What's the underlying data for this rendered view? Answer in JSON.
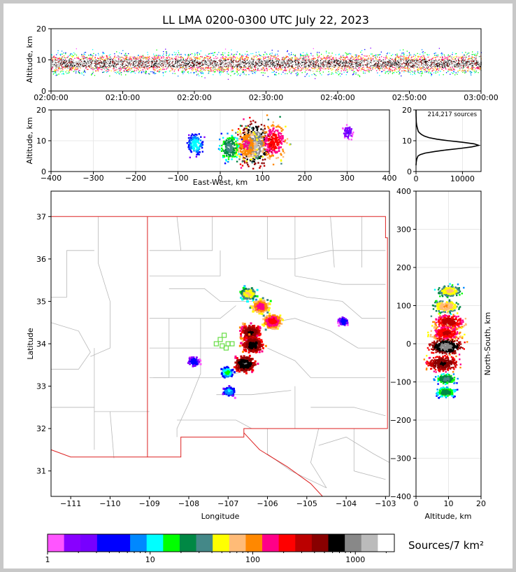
{
  "title": "LL LMA 0200-0300 UTC July 22, 2023",
  "time_height": {
    "ylabel": "Altitude, km",
    "yticks": [
      "0",
      "10",
      "20"
    ],
    "xticks": [
      "02:00:00",
      "02:10:00",
      "02:20:00",
      "02:30:00",
      "02:40:00",
      "02:50:00",
      "03:00:00"
    ]
  },
  "ew_alt": {
    "ylabel": "Altitude, km",
    "xlabel": "East-West, km",
    "yticks": [
      "0",
      "10",
      "20"
    ],
    "xticks": [
      "−400",
      "−300",
      "−200",
      "−100",
      "0",
      "100",
      "200",
      "300",
      "400"
    ]
  },
  "histogram": {
    "annotation": "214,217 sources",
    "yticks": [
      "0",
      "10",
      "20"
    ],
    "xticks": [
      "0",
      "10000"
    ]
  },
  "plan_view": {
    "xlabel": "Longitude",
    "ylabel": "Latitude",
    "xticks": [
      "−111",
      "−110",
      "−109",
      "−108",
      "−107",
      "−106",
      "−105",
      "−104",
      "−103"
    ],
    "yticks": [
      "31",
      "32",
      "33",
      "34",
      "35",
      "36",
      "37"
    ]
  },
  "ns_alt": {
    "xlabel": "Altitude, km",
    "ylabel": "North-South, km",
    "xticks": [
      "0",
      "10",
      "20"
    ],
    "yticks": [
      "−400",
      "−300",
      "−200",
      "−100",
      "0",
      "100",
      "200",
      "300",
      "400"
    ]
  },
  "colorbar": {
    "label": "Sources/7 km²",
    "ticks": [
      "1",
      "10",
      "100",
      "1000"
    ],
    "colors": [
      "#ff55ff",
      "#8800ff",
      "#7700ff",
      "#0000ff",
      "#0000ff",
      "#0088ff",
      "#00ffff",
      "#00ff00",
      "#008844",
      "#448888",
      "#ffff00",
      "#ffbb77",
      "#ff8800",
      "#ff0088",
      "#ff0000",
      "#bb0000",
      "#880000",
      "#000000",
      "#888888",
      "#bbbbbb",
      "#ffffff"
    ]
  },
  "chart_data": [
    {
      "type": "scatter",
      "panel": "time-height",
      "title": "LL LMA 0200-0300 UTC July 22, 2023",
      "xlabel": "",
      "ylabel": "Altitude, km",
      "xlim": [
        "02:00:00",
        "03:00:00"
      ],
      "ylim": [
        0,
        20
      ],
      "mean_altitude_km": 9
    },
    {
      "type": "heatmap",
      "panel": "east-west-altitude",
      "xlabel": "East-West, km",
      "ylabel": "Altitude, km",
      "xlim": [
        -400,
        400
      ],
      "ylim": [
        0,
        20
      ],
      "cells": [
        {
          "x": 80,
          "y": 9,
          "count": 1000
        },
        {
          "x": 125,
          "y": 10,
          "count": 200
        },
        {
          "x": 60,
          "y": 9,
          "count": 120
        },
        {
          "x": 20,
          "y": 8,
          "count": 30
        },
        {
          "x": -60,
          "y": 9,
          "count": 12
        },
        {
          "x": 300,
          "y": 13,
          "count": 3
        }
      ]
    },
    {
      "type": "line",
      "panel": "altitude-histogram",
      "xlabel": "",
      "ylabel": "",
      "xlim": [
        0,
        14000
      ],
      "ylim": [
        0,
        20
      ],
      "total_sources": 214217,
      "x": [
        0,
        50,
        150,
        400,
        900,
        2000,
        4000,
        6500,
        9500,
        12000,
        13500,
        12500,
        10000,
        7000,
        4500,
        2800,
        1800,
        1200,
        800,
        500,
        300,
        150,
        60,
        20,
        0
      ],
      "y": [
        2,
        3,
        4,
        5,
        5.5,
        6,
        6.5,
        7,
        7.5,
        8,
        8.5,
        9,
        9.5,
        10,
        10.5,
        11,
        11.5,
        12,
        12.5,
        13,
        14,
        15,
        16,
        18,
        20
      ]
    },
    {
      "type": "heatmap",
      "panel": "plan-view",
      "xlabel": "Longitude",
      "ylabel": "Latitude",
      "xlim": [
        -111.5,
        -102.9
      ],
      "ylim": [
        30.4,
        37.6
      ],
      "cells": [
        {
          "x": -106.5,
          "y": 35.2,
          "count": 60
        },
        {
          "x": -106.2,
          "y": 34.9,
          "count": 150
        },
        {
          "x": -105.9,
          "y": 34.55,
          "count": 200
        },
        {
          "x": -106.45,
          "y": 34.3,
          "count": 500
        },
        {
          "x": -106.4,
          "y": 34.0,
          "count": 600
        },
        {
          "x": -106.6,
          "y": 33.55,
          "count": 700
        },
        {
          "x": -107.05,
          "y": 33.35,
          "count": 15
        },
        {
          "x": -107.0,
          "y": 32.9,
          "count": 10
        },
        {
          "x": -107.9,
          "y": 33.6,
          "count": 6
        },
        {
          "x": -104.1,
          "y": 34.55,
          "count": 5
        }
      ]
    },
    {
      "type": "heatmap",
      "panel": "north-south-altitude",
      "xlabel": "Altitude, km",
      "ylabel": "North-South, km",
      "xlim": [
        0,
        20
      ],
      "ylim": [
        -400,
        400
      ],
      "cells": [
        {
          "x": 10,
          "y": 140,
          "count": 60
        },
        {
          "x": 9,
          "y": 100,
          "count": 80
        },
        {
          "x": 10,
          "y": 60,
          "count": 300
        },
        {
          "x": 9,
          "y": 30,
          "count": 250
        },
        {
          "x": 9,
          "y": -5,
          "count": 800
        },
        {
          "x": 8,
          "y": -50,
          "count": 500
        },
        {
          "x": 9,
          "y": -90,
          "count": 30
        },
        {
          "x": 9,
          "y": -125,
          "count": 25
        }
      ]
    }
  ]
}
